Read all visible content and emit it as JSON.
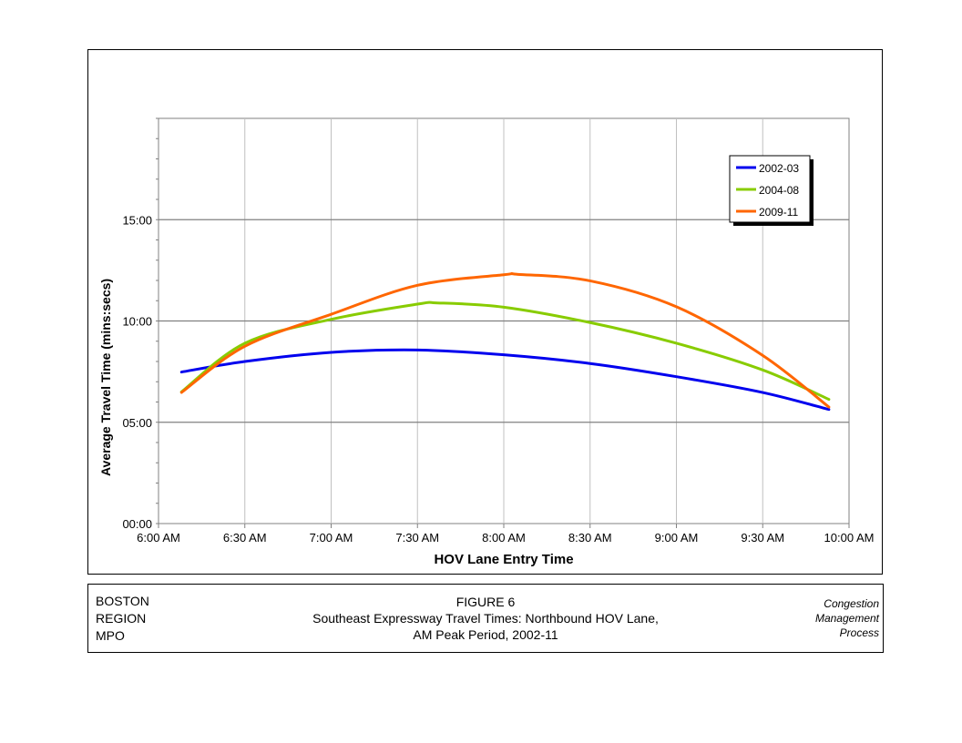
{
  "chart_data": {
    "type": "line",
    "xlabel": "HOV Lane Entry Time",
    "ylabel": "Average Travel Time (mins:secs)",
    "xlim": [
      "6:00 AM",
      "10:00 AM"
    ],
    "ylim_minutes": [
      0,
      20
    ],
    "x_ticks": [
      "6:00 AM",
      "6:30 AM",
      "7:00 AM",
      "7:30 AM",
      "8:00 AM",
      "8:30 AM",
      "9:00 AM",
      "9:30 AM",
      "10:00 AM"
    ],
    "y_ticks": [
      "00:00",
      "05:00",
      "10:00",
      "15:00"
    ],
    "grid": true,
    "legend_position": "top-right",
    "x_unit": "clock time (AM)",
    "y_unit": "minutes",
    "series": [
      {
        "name": "2002-03",
        "color": "#0000ee",
        "x": [
          "6:08",
          "6:30",
          "7:00",
          "7:30",
          "8:00",
          "8:30",
          "9:00",
          "9:30",
          "9:53"
        ],
        "y": [
          7.48,
          8.0,
          8.45,
          8.57,
          8.33,
          7.9,
          7.25,
          6.47,
          5.63
        ]
      },
      {
        "name": "2004-08",
        "color": "#88cc00",
        "x": [
          "6:08",
          "6:30",
          "7:00",
          "7:30",
          "7:37",
          "8:00",
          "8:30",
          "9:00",
          "9:30",
          "9:53"
        ],
        "y": [
          6.5,
          8.9,
          10.08,
          10.83,
          10.89,
          10.68,
          9.92,
          8.9,
          7.58,
          6.13
        ]
      },
      {
        "name": "2009-11",
        "color": "#ff6600",
        "x": [
          "6:08",
          "6:30",
          "7:00",
          "7:30",
          "8:00",
          "8:05",
          "8:30",
          "9:00",
          "9:30",
          "9:53"
        ],
        "y": [
          6.47,
          8.75,
          10.33,
          11.76,
          12.28,
          12.3,
          11.98,
          10.7,
          8.3,
          5.75
        ]
      }
    ]
  },
  "caption": {
    "org_lines": [
      "BOSTON",
      "REGION",
      "MPO"
    ],
    "figure": "FIGURE 6",
    "title_line1": "Southeast Expressway Travel Times: Northbound HOV Lane,",
    "title_line2": "AM Peak Period, 2002-11",
    "program_lines": [
      "Congestion",
      "Management",
      "Process"
    ]
  }
}
